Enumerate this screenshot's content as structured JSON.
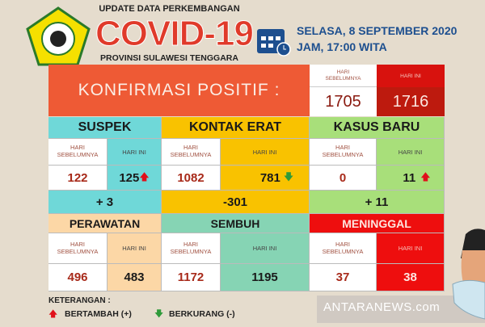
{
  "header": {
    "top_line": "UPDATE DATA PERKEMBANGAN",
    "title": "COVID-19",
    "province": "PROVINSI SULAWESI TENGGARA",
    "date": "SELASA, 8 SEPTEMBER 2020",
    "time": "JAM, 17:00 WITA",
    "logo_text": "SULAWESI TENGGARA"
  },
  "labels": {
    "prev": "HARI SEBELUMNYA",
    "today": "HARI INI"
  },
  "konfirmasi": {
    "title": "KONFIRMASI POSITIF :",
    "prev": "1705",
    "today": "1716"
  },
  "suspek": {
    "title": "SUSPEK",
    "prev": "122",
    "today": "125",
    "diff": "+ 3",
    "trend": "up"
  },
  "kontak": {
    "title": "KONTAK ERAT",
    "prev": "1082",
    "today": "781",
    "diff": "-301",
    "trend": "down"
  },
  "kasus": {
    "title": "KASUS BARU",
    "prev": "0",
    "today": "11",
    "diff": "+ 11",
    "trend": "up"
  },
  "perawatan": {
    "title": "PERAWATAN",
    "prev": "496",
    "today": "483"
  },
  "sembuh": {
    "title": "SEMBUH",
    "prev": "1172",
    "today": "1195"
  },
  "meninggal": {
    "title": "MENINGGAL",
    "prev": "37",
    "today": "38"
  },
  "legend": {
    "title": "KETERANGAN :",
    "up": "BERTAMBAH (+)",
    "down": "BERKURANG (-)"
  },
  "watermark": "ANTARANEWS.com",
  "colors": {
    "orange": "#ee5a35",
    "cyan": "#6fd8d8",
    "yellow": "#f9c200",
    "green": "#a8df7a",
    "peach": "#fcd7a6",
    "mint": "#86d4b4",
    "red": "#ee0e0e",
    "dark_red": "#c11a0e",
    "up": "#e0101a",
    "down": "#2f9a3a"
  }
}
